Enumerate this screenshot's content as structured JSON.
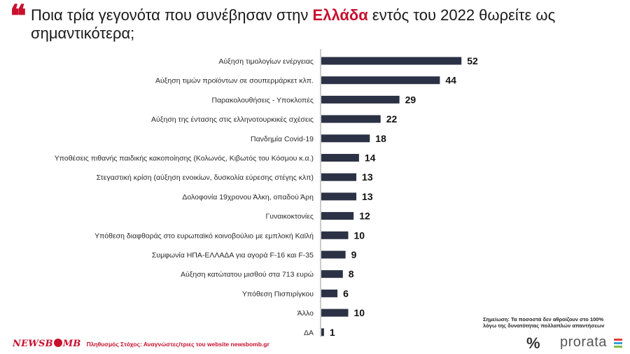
{
  "header": {
    "quote_mark": "❝",
    "title_before": "Ποια τρία γεγονότα που συνέβησαν στην ",
    "title_accent": "Ελλάδα",
    "title_after": " εντός του 2022 θωρείτε ως σημαντικότερα;"
  },
  "chart_data": {
    "type": "bar",
    "orientation": "horizontal",
    "title": "Ποια τρία γεγονότα που συνέβησαν στην Ελλάδα εντός του 2022 θωρείτε ως σημαντικότερα;",
    "categories": [
      "Αύξηση τιμολογίων ενέργειας",
      "Αύξηση τιμών προϊόντων σε σουπερμάρκετ κλπ.",
      "Παρακολουθήσεις - Υποκλοπές",
      "Αύξηση της έντασης στις ελληνοτουρκικές σχέσεις",
      "Πανδημία Covid-19",
      "Υποθέσεις πιθανής παιδικής κακοποίησης (Κολωνός, Κιβωτός του Κόσμου κ.α.)",
      "Στεγαστική κρίση (αύξηση ενοικίων, δυσκολία εύρεσης στέγης κλπ)",
      "Δολοφονία 19χρονου Άλκη, οπαδού Άρη",
      "Γυναικοκτονίες",
      "Υπόθεση διαφθοράς στο ευρωπαϊκό κοινοβούλιο με εμπλοκή Καϊλή",
      "Συμφωνία ΗΠΑ-ΕΛΛΑΔΑ για αγορά F-16 και F-35",
      "Αύξηση κατώτατου μισθού στα 713 ευρώ",
      "Υπόθεση Πισπιρίγκου",
      "Άλλο",
      "ΔΑ"
    ],
    "values": [
      52,
      44,
      29,
      22,
      18,
      14,
      13,
      13,
      12,
      10,
      9,
      8,
      6,
      10,
      1
    ],
    "xlim": [
      0,
      60
    ],
    "grid": false,
    "legend": "none",
    "bar_color": "#2b3245",
    "axis_color": "#9a9a9a"
  },
  "note": {
    "line1": "Σημείωση: Τα ποσοστά δεν αθροίζουν στο 100%",
    "line2": "λόγω της δυνατότητας πολλαπλών απαντήσεων"
  },
  "footer": {
    "brand_part1": "NEWSB",
    "brand_part2": "MB",
    "sample": "Πληθυσμός Στόχος: Αναγνώστες/τριες του website newsbomb.gr"
  },
  "logos": {
    "pct": "%",
    "prorata": "prorata",
    "mark_colors": [
      "#e63b3b",
      "#3aa0d8",
      "#7ac143"
    ]
  }
}
